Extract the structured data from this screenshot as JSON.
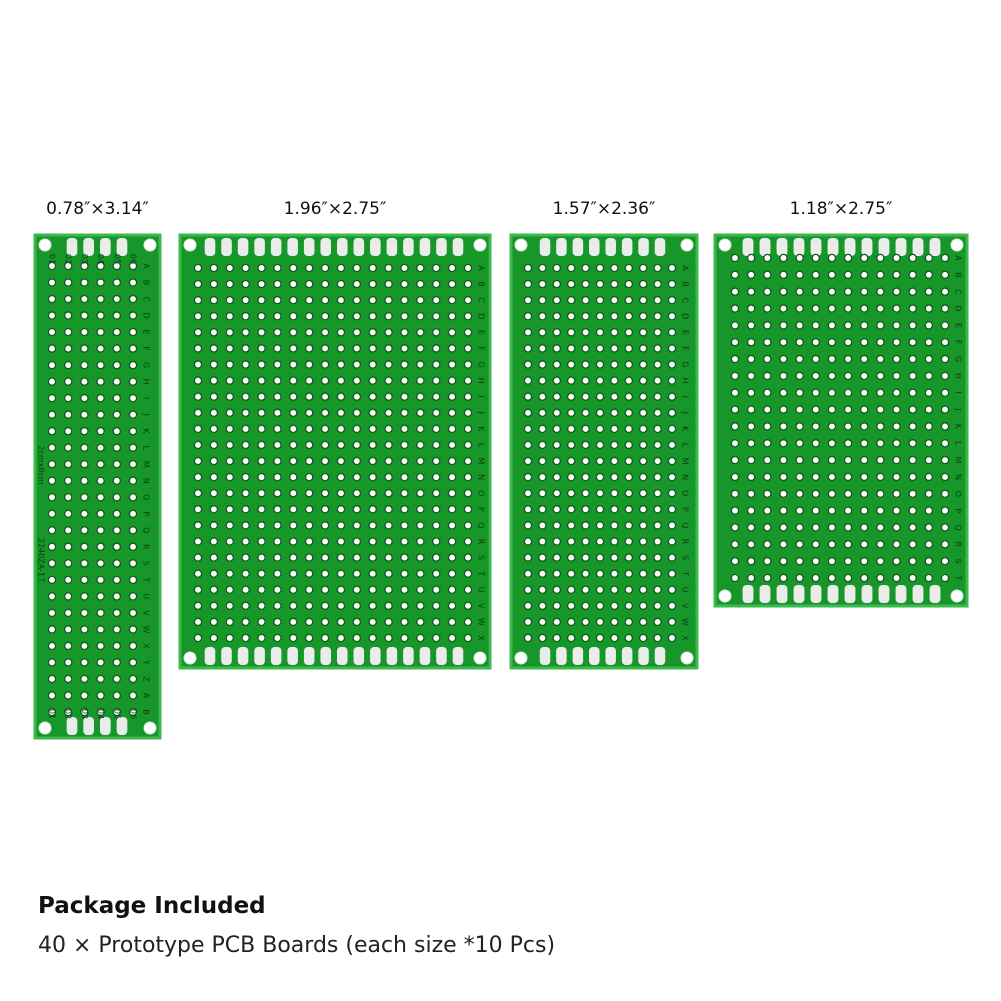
{
  "boards": [
    {
      "size": "0.78″×3.14″",
      "rows": [
        "A",
        "B",
        "C",
        "D",
        "E",
        "F",
        "G",
        "H",
        "I",
        "J",
        "K",
        "L",
        "M",
        "N",
        "O",
        "P",
        "Q",
        "R",
        "S",
        "T",
        "U",
        "V",
        "W",
        "X",
        "Y",
        "Z",
        "A",
        "B"
      ],
      "cols": [
        "01",
        "02",
        "03",
        "04",
        "05",
        "06"
      ],
      "marks": [
        "2cmx8cm",
        "2240ZA-17"
      ]
    },
    {
      "size": "1.96″×2.75″",
      "rows": [
        "A",
        "B",
        "C",
        "D",
        "E",
        "F",
        "G",
        "H",
        "I",
        "J",
        "K",
        "L",
        "M",
        "N",
        "O",
        "P",
        "Q",
        "R",
        "S",
        "T",
        "U",
        "V",
        "W",
        "X"
      ]
    },
    {
      "size": "1.57″×2.36″",
      "rows": [
        "A",
        "B",
        "C",
        "D",
        "E",
        "F",
        "G",
        "H",
        "I",
        "J",
        "K",
        "L",
        "M",
        "N",
        "O",
        "P",
        "Q",
        "R",
        "S",
        "T",
        "U",
        "V",
        "W",
        "X"
      ]
    },
    {
      "size": "1.18″×2.75″",
      "rows": [
        "A",
        "B",
        "C",
        "D",
        "E",
        "F",
        "G",
        "H",
        "I",
        "J",
        "K",
        "L",
        "M",
        "N",
        "O",
        "P",
        "Q",
        "R",
        "S",
        "T"
      ]
    }
  ],
  "package": {
    "title": "Package Included",
    "description": "40 × Prototype PCB Boards (each size *10 Pcs)"
  }
}
